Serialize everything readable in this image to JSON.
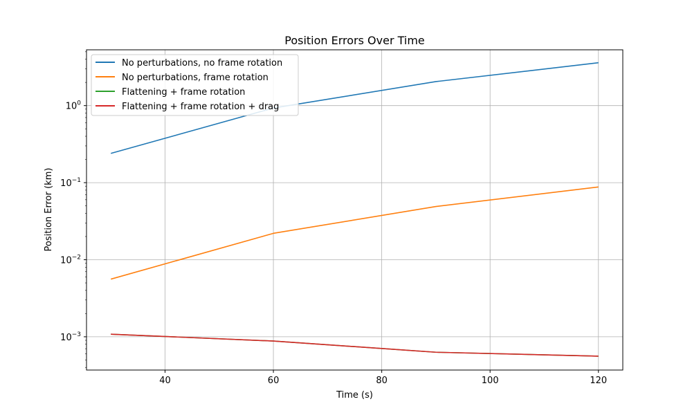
{
  "chart_data": {
    "type": "line",
    "title": "Position Errors Over Time",
    "xlabel": "Time (s)",
    "ylabel": "Position Error (km)",
    "xscale": "linear",
    "yscale": "log",
    "xlim": [
      25.5,
      124.5
    ],
    "ylim": [
      0.00037,
      5.3
    ],
    "grid": true,
    "legend": "upper left",
    "x": [
      30,
      60,
      90,
      120
    ],
    "x_ticks": [
      {
        "value": 40,
        "label": "40"
      },
      {
        "value": 60,
        "label": "60"
      },
      {
        "value": 80,
        "label": "80"
      },
      {
        "value": 100,
        "label": "100"
      },
      {
        "value": 120,
        "label": "120"
      }
    ],
    "y_ticks": [
      {
        "value": 0.001,
        "base": "10",
        "exp": "−3"
      },
      {
        "value": 0.01,
        "base": "10",
        "exp": "−2"
      },
      {
        "value": 0.1,
        "base": "10",
        "exp": "−1"
      },
      {
        "value": 1,
        "base": "10",
        "exp": "0"
      }
    ],
    "series": [
      {
        "name": "No perturbations, no frame rotation",
        "color": "#1f77b4",
        "values": [
          0.24,
          0.93,
          2.05,
          3.6
        ]
      },
      {
        "name": "No perturbations, frame rotation",
        "color": "#ff7f0e",
        "values": [
          0.0056,
          0.022,
          0.049,
          0.088
        ]
      },
      {
        "name": "Flattening + frame rotation",
        "color": "#2ca02c",
        "values": [
          0.00108,
          0.00088,
          0.00063,
          0.00056
        ]
      },
      {
        "name": "Flattening + frame rotation + drag",
        "color": "#d62728",
        "values": [
          0.00108,
          0.00088,
          0.00063,
          0.00056
        ]
      }
    ]
  }
}
